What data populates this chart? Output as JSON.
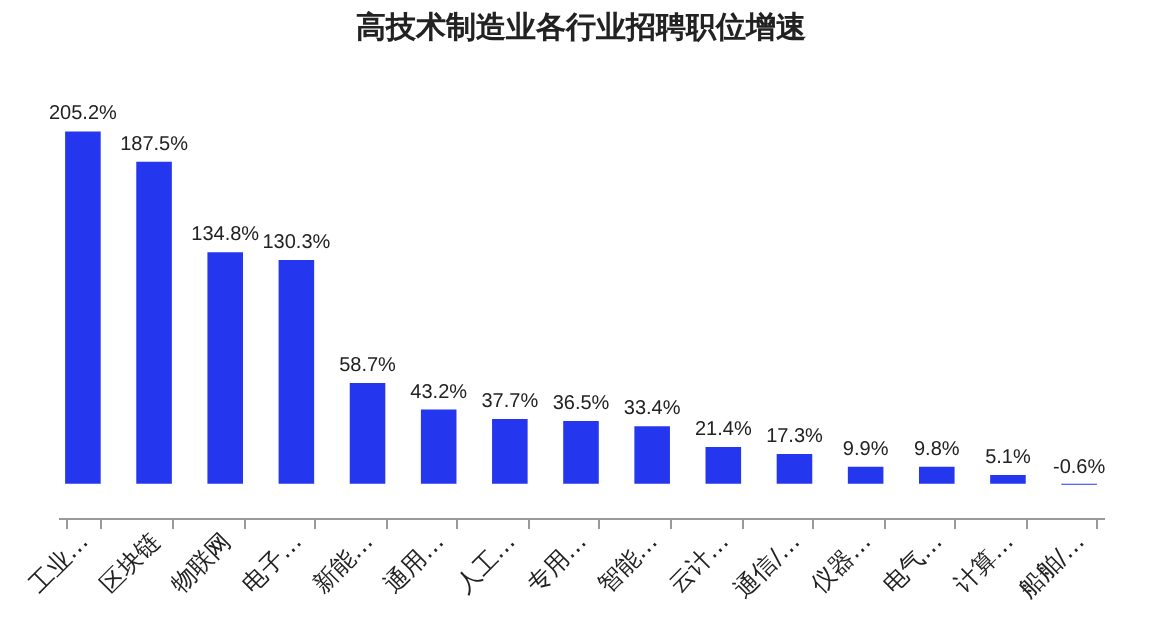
{
  "chart_data": {
    "type": "bar",
    "title": "高技术制造业各行业招聘职位增速",
    "categories": [
      "工业…",
      "区块链",
      "物联网",
      "电子…",
      "新能…",
      "通用…",
      "人工…",
      "专用…",
      "智能…",
      "云计…",
      "通信/…",
      "仪器…",
      "电气…",
      "计算…",
      "船舶/…"
    ],
    "values": [
      205.2,
      187.5,
      134.8,
      130.3,
      58.7,
      43.2,
      37.7,
      36.5,
      33.4,
      21.4,
      17.3,
      9.9,
      9.8,
      5.1,
      -0.6
    ],
    "value_labels": [
      "205.2%",
      "187.5%",
      "134.8%",
      "130.3%",
      "58.7%",
      "43.2%",
      "37.7%",
      "36.5%",
      "33.4%",
      "21.4%",
      "17.3%",
      "9.9%",
      "9.8%",
      "5.1%",
      "-0.6%"
    ],
    "color": "#2437ef",
    "grid": false
  }
}
